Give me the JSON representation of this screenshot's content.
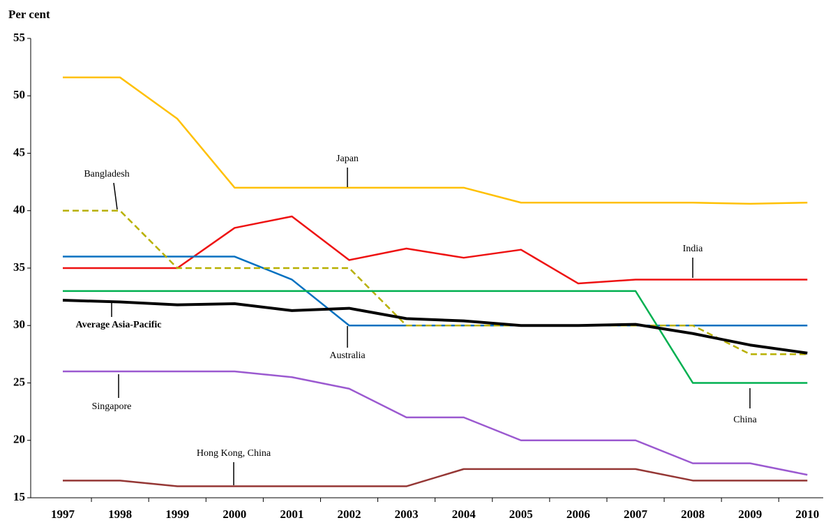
{
  "chart_data": {
    "type": "line",
    "y_label": "Per cent",
    "categories": [
      "1997",
      "1998",
      "1999",
      "2000",
      "2001",
      "2002",
      "2003",
      "2004",
      "2005",
      "2006",
      "2007",
      "2008",
      "2009",
      "2010"
    ],
    "ylim": [
      15,
      55
    ],
    "yticks": [
      15,
      20,
      25,
      30,
      35,
      40,
      45,
      50,
      55
    ],
    "series": [
      {
        "name": "Japan",
        "color": "#ffc000",
        "values": [
          51.6,
          51.6,
          48,
          42,
          42,
          42,
          42,
          42,
          40.7,
          40.7,
          40.7,
          40.7,
          40.6,
          40.7
        ]
      },
      {
        "name": "India",
        "color": "#ee1111",
        "values": [
          35,
          35,
          35,
          38.5,
          39.5,
          35.7,
          36.7,
          35.9,
          36.6,
          33.66,
          34,
          34,
          34,
          34
        ]
      },
      {
        "name": "Australia",
        "color": "#0070c0",
        "values": [
          36,
          36,
          36,
          36,
          34,
          30,
          30,
          30,
          30,
          30,
          30,
          30,
          30,
          30
        ]
      },
      {
        "name": "Bangladesh",
        "color": "#b8b000",
        "dashed": true,
        "values": [
          40,
          40,
          35,
          35,
          35,
          35,
          30,
          30,
          30,
          30,
          30,
          30,
          27.5,
          27.5
        ]
      },
      {
        "name": "China",
        "color": "#00b050",
        "values": [
          33,
          33,
          33,
          33,
          33,
          33,
          33,
          33,
          33,
          33,
          33,
          25,
          25,
          25
        ]
      },
      {
        "name": "Average Asia-Pacific",
        "color": "#000000",
        "bold": true,
        "values": [
          32.2,
          32.05,
          31.8,
          31.9,
          31.3,
          31.5,
          30.6,
          30.4,
          30.0,
          30.0,
          30.1,
          29.3,
          28.3,
          27.6
        ]
      },
      {
        "name": "Singapore",
        "color": "#9b59d0",
        "values": [
          26,
          26,
          26,
          26,
          25.5,
          24.5,
          22,
          22,
          20,
          20,
          20,
          18,
          18,
          17
        ]
      },
      {
        "name": "Hong Kong, China",
        "color": "#953735",
        "values": [
          16.5,
          16.5,
          16,
          16,
          16,
          16,
          16,
          17.5,
          17.5,
          17.5,
          17.5,
          16.5,
          16.5,
          16.5
        ]
      }
    ]
  }
}
